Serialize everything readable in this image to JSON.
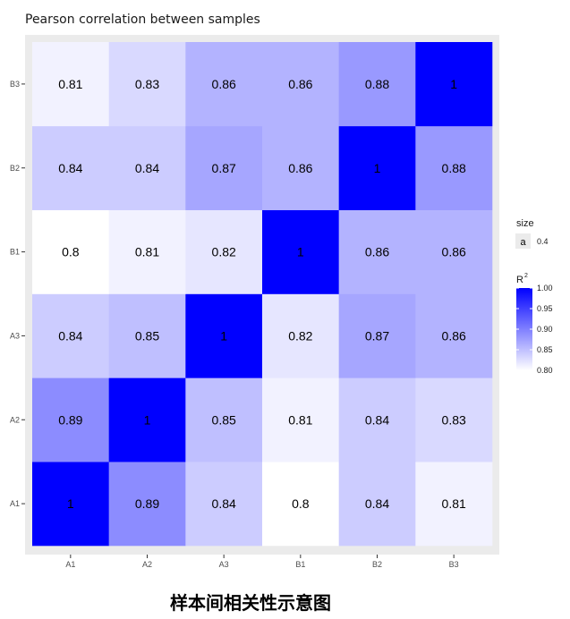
{
  "chart_data": {
    "type": "heatmap",
    "title": "Pearson correlation between samples",
    "x_categories": [
      "A1",
      "A2",
      "A3",
      "B1",
      "B2",
      "B3"
    ],
    "y_categories": [
      "A1",
      "A2",
      "A3",
      "B1",
      "B2",
      "B3"
    ],
    "matrix": [
      [
        1,
        0.89,
        0.84,
        0.8,
        0.84,
        0.81
      ],
      [
        0.89,
        1,
        0.85,
        0.81,
        0.84,
        0.83
      ],
      [
        0.84,
        0.85,
        1,
        0.82,
        0.87,
        0.86
      ],
      [
        0.8,
        0.81,
        0.82,
        1,
        0.86,
        0.86
      ],
      [
        0.84,
        0.84,
        0.87,
        0.86,
        1,
        0.88
      ],
      [
        0.81,
        0.83,
        0.86,
        0.86,
        0.88,
        1
      ]
    ],
    "labels": [
      [
        "1",
        "0.89",
        "0.84",
        "0.8",
        "0.84",
        "0.81"
      ],
      [
        "0.89",
        "1",
        "0.85",
        "0.81",
        "0.84",
        "0.83"
      ],
      [
        "0.84",
        "0.85",
        "1",
        "0.82",
        "0.87",
        "0.86"
      ],
      [
        "0.8",
        "0.81",
        "0.82",
        "1",
        "0.86",
        "0.86"
      ],
      [
        "0.84",
        "0.84",
        "0.87",
        "0.86",
        "1",
        "0.88"
      ],
      [
        "0.81",
        "0.83",
        "0.86",
        "0.86",
        "0.88",
        "1"
      ]
    ],
    "color_scale": {
      "low": "#ffffff",
      "high": "#0000ff",
      "limits": [
        0.8,
        1.0
      ]
    },
    "legend_size": {
      "title": "size",
      "key": "a",
      "value": "0.4"
    },
    "legend_fill": {
      "title": "R",
      "title_superscript": "2",
      "breaks": [
        1.0,
        0.95,
        0.9,
        0.85,
        0.8
      ],
      "break_labels": [
        "1.00",
        "0.95",
        "0.90",
        "0.85",
        "0.80"
      ]
    },
    "legend_position": "right",
    "panel_background": "#ebebeb",
    "grid": false
  },
  "caption": "样本间相关性示意图"
}
